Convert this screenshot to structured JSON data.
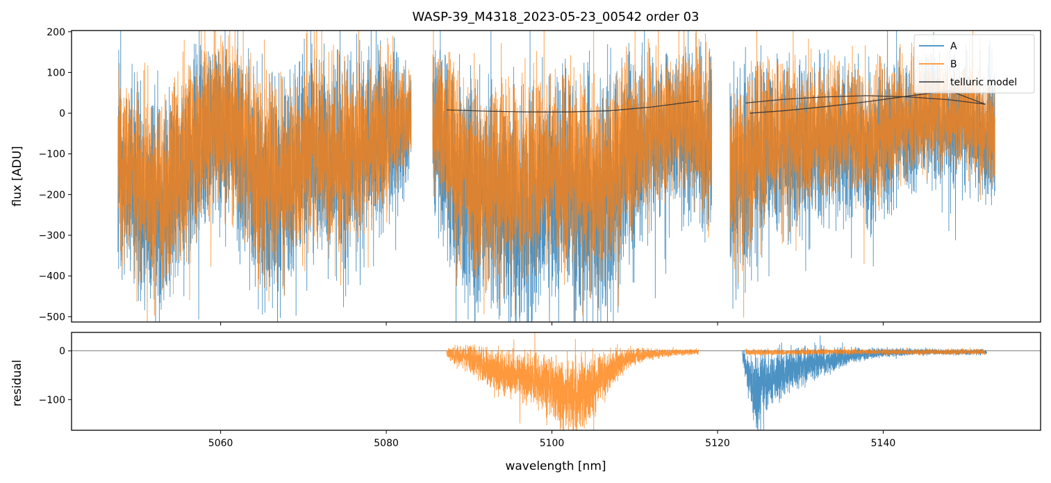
{
  "chart_data": [
    {
      "panel": "top",
      "type": "line",
      "title": "WASP-39_M4318_2023-05-23_00542  order 03",
      "xlabel": "",
      "ylabel": "flux [ADU]",
      "xlim": [
        5042,
        5159
      ],
      "ylim": [
        -513,
        203
      ],
      "yticks": [
        200,
        100,
        0,
        -100,
        -200,
        -300,
        -400,
        -500
      ],
      "ytick_labels": [
        "200",
        "100",
        "0",
        "−100",
        "−200",
        "−300",
        "−400",
        "−500"
      ],
      "xticks": [
        5060,
        5080,
        5100,
        5120,
        5140
      ],
      "legend": {
        "location": "top-right",
        "entries": [
          {
            "label": "A",
            "color": "#1f77b4"
          },
          {
            "label": "B",
            "color": "#ff7f0e"
          },
          {
            "label": "telluric model",
            "color": "#333333"
          }
        ]
      },
      "series": [
        {
          "name": "A",
          "color": "#1f77b4",
          "segments": [
            {
              "x_start": 5047.6,
              "x_end": 5083.0
            },
            {
              "x_start": 5085.6,
              "x_end": 5119.3
            },
            {
              "x_start": 5121.5,
              "x_end": 5153.5
            }
          ],
          "envelope_x": [
            5047.6,
            5050,
            5053,
            5056,
            5059,
            5062,
            5065,
            5068,
            5071,
            5074,
            5077,
            5080,
            5083.0,
            5085.6,
            5088,
            5091,
            5094,
            5097,
            5100,
            5103,
            5106,
            5109,
            5112,
            5115,
            5117,
            5119.3,
            5121.5,
            5124,
            5127,
            5130,
            5133,
            5136,
            5139,
            5142,
            5145,
            5148,
            5151,
            5153.5
          ],
          "envelope_center": [
            -120,
            -200,
            -230,
            -120,
            -40,
            -60,
            -200,
            -170,
            -100,
            -130,
            -110,
            -60,
            -10,
            -30,
            -130,
            -230,
            -200,
            -260,
            -180,
            -220,
            -230,
            -140,
            -80,
            -40,
            -60,
            -100,
            -200,
            -120,
            -90,
            -80,
            -60,
            -70,
            -90,
            -40,
            -20,
            -20,
            -40,
            -60
          ],
          "envelope_amp": [
            250,
            250,
            260,
            250,
            220,
            240,
            260,
            250,
            230,
            250,
            230,
            210,
            120,
            200,
            250,
            280,
            270,
            290,
            260,
            280,
            280,
            250,
            200,
            170,
            190,
            230,
            260,
            240,
            210,
            200,
            180,
            180,
            190,
            160,
            150,
            140,
            150,
            180
          ]
        },
        {
          "name": "B",
          "color": "#ff7f0e",
          "segments": [
            {
              "x_start": 5047.6,
              "x_end": 5083.0
            },
            {
              "x_start": 5085.6,
              "x_end": 5119.3
            },
            {
              "x_start": 5121.5,
              "x_end": 5153.5
            }
          ],
          "envelope_x": [
            5047.6,
            5050,
            5053,
            5056,
            5059,
            5062,
            5065,
            5068,
            5071,
            5074,
            5077,
            5080,
            5083.0,
            5085.6,
            5088,
            5091,
            5094,
            5097,
            5100,
            5103,
            5106,
            5109,
            5112,
            5115,
            5117,
            5119.3,
            5121.5,
            5124,
            5127,
            5130,
            5133,
            5136,
            5139,
            5142,
            5145,
            5148,
            5151,
            5153.5
          ],
          "envelope_center": [
            -100,
            -170,
            -200,
            -100,
            -20,
            -40,
            -170,
            -150,
            -80,
            -110,
            -90,
            -40,
            0,
            -10,
            -100,
            -180,
            -150,
            -180,
            -130,
            -160,
            -170,
            -90,
            -40,
            -10,
            -30,
            -80,
            -170,
            -90,
            -60,
            -50,
            -40,
            -40,
            -60,
            -20,
            -5,
            -5,
            -20,
            -50
          ],
          "envelope_amp": [
            220,
            220,
            230,
            220,
            200,
            210,
            230,
            220,
            210,
            220,
            200,
            190,
            100,
            170,
            210,
            230,
            220,
            230,
            210,
            230,
            230,
            210,
            170,
            150,
            170,
            200,
            220,
            200,
            180,
            170,
            160,
            160,
            170,
            140,
            130,
            120,
            130,
            160
          ]
        },
        {
          "name": "telluric model",
          "color": "#333333",
          "curves": [
            {
              "x": [
                5087.3,
                5092,
                5097,
                5102,
                5107,
                5112,
                5117.7
              ],
              "y": [
                8,
                5,
                3,
                3,
                6,
                15,
                30
              ]
            },
            {
              "x": [
                5123.4,
                5128,
                5133,
                5138,
                5143,
                5148,
                5152.3
              ],
              "y": [
                25,
                34,
                40,
                43,
                40,
                33,
                22
              ]
            },
            {
              "x": [
                5123.9,
                5128,
                5133,
                5138,
                5143,
                5148,
                5152.3
              ],
              "y": [
                0,
                6,
                16,
                28,
                42,
                55,
                22
              ]
            }
          ]
        }
      ]
    },
    {
      "panel": "bottom",
      "type": "line",
      "title": "",
      "xlabel": "wavelength [nm]",
      "ylabel": "residual",
      "xlim": [
        5042,
        5159
      ],
      "ylim": [
        -163,
        38
      ],
      "yticks": [
        0,
        -100
      ],
      "ytick_labels": [
        "0",
        "−100"
      ],
      "xticks": [
        5060,
        5080,
        5100,
        5120,
        5140
      ],
      "xtick_labels": [
        "5060",
        "5080",
        "5100",
        "5120",
        "5140"
      ],
      "zero_line": true,
      "series": [
        {
          "name": "A",
          "color": "#1f77b4",
          "segments": [
            {
              "x_start": 5123.0,
              "x_end": 5152.5
            }
          ],
          "envelope_x": [
            5123.0,
            5124.5,
            5126,
            5128,
            5130,
            5132,
            5134,
            5136,
            5138,
            5141,
            5145,
            5149,
            5152.5
          ],
          "envelope_center": [
            -5,
            -90,
            -60,
            -45,
            -35,
            -25,
            -18,
            -10,
            -6,
            -3,
            -2,
            -2,
            -2
          ],
          "envelope_amp": [
            12,
            80,
            55,
            45,
            40,
            30,
            22,
            15,
            10,
            7,
            6,
            5,
            5
          ]
        },
        {
          "name": "B",
          "color": "#ff7f0e",
          "segments": [
            {
              "x_start": 5087.3,
              "x_end": 5117.7
            },
            {
              "x_start": 5123.4,
              "x_end": 5152.3
            }
          ],
          "envelope_x": [
            5087.3,
            5090,
            5093,
            5096,
            5099,
            5101,
            5103,
            5105,
            5107,
            5109,
            5112,
            5115,
            5117.7,
            5123.4,
            5128,
            5133,
            5138,
            5143,
            5148,
            5152.3
          ],
          "envelope_center": [
            -5,
            -15,
            -40,
            -55,
            -60,
            -90,
            -95,
            -70,
            -40,
            -15,
            -6,
            -3,
            -2,
            -3,
            -3,
            -2,
            -2,
            -2,
            -2,
            -2
          ],
          "envelope_amp": [
            12,
            25,
            40,
            45,
            55,
            70,
            70,
            60,
            40,
            20,
            10,
            6,
            5,
            6,
            5,
            5,
            5,
            5,
            5,
            5
          ]
        }
      ]
    }
  ]
}
